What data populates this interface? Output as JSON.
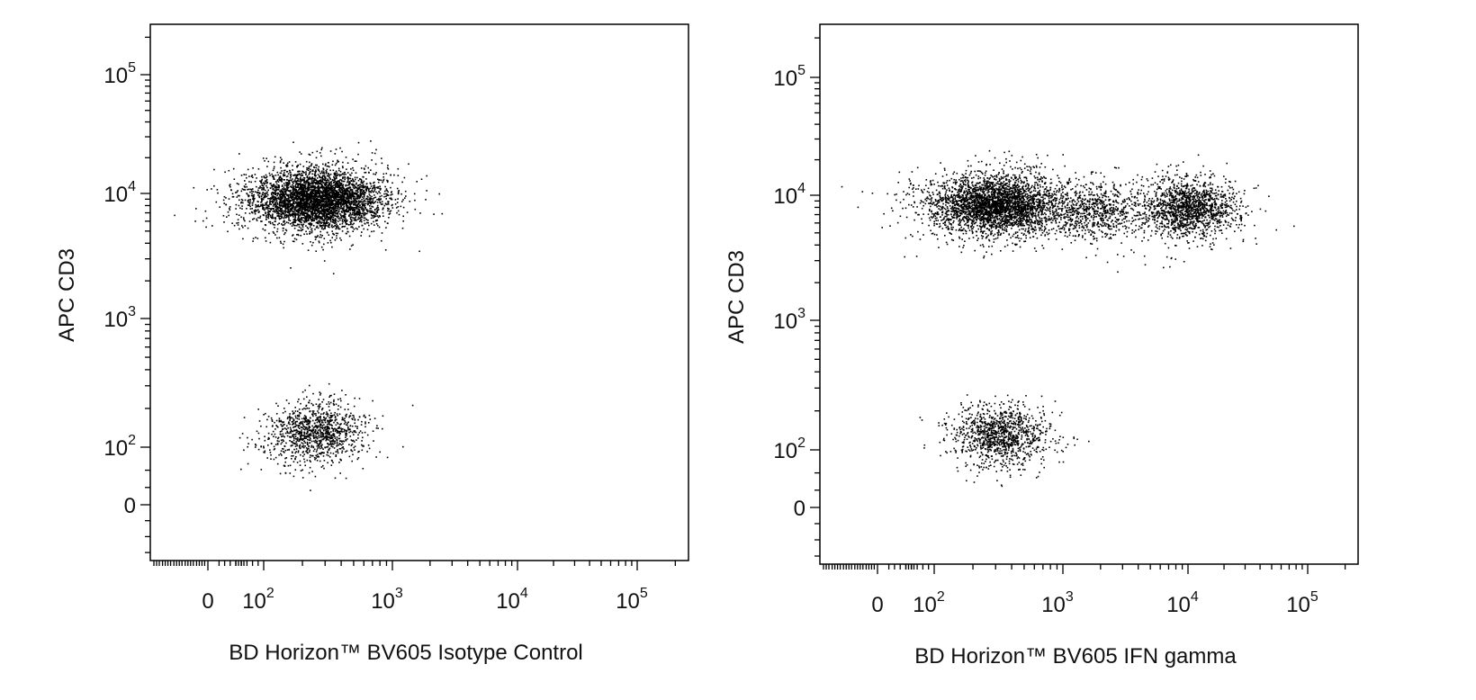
{
  "chart_data": [
    {
      "type": "scatter",
      "xlabel": "BD Horizon™ BV605 Isotype Control",
      "ylabel": "APC CD3",
      "x_scale": "biexponential",
      "y_scale": "biexponential",
      "xlim": [
        -250,
        250000
      ],
      "ylim": [
        -100,
        250000
      ],
      "x_ticks": [
        {
          "label": "0",
          "value": 0
        },
        {
          "label": "10",
          "exp": "2",
          "value": 100
        },
        {
          "label": "10",
          "exp": "3",
          "value": 1000
        },
        {
          "label": "10",
          "exp": "4",
          "value": 10000
        },
        {
          "label": "10",
          "exp": "5",
          "value": 100000
        }
      ],
      "y_ticks": [
        {
          "label": "0",
          "value": 0
        },
        {
          "label": "10",
          "exp": "2",
          "value": 100
        },
        {
          "label": "10",
          "exp": "3",
          "value": 1000
        },
        {
          "label": "10",
          "exp": "4",
          "value": 10000
        },
        {
          "label": "10",
          "exp": "5",
          "value": 100000
        }
      ],
      "populations": [
        {
          "center": [
            260,
            9000
          ],
          "count": 4200
        },
        {
          "center": [
            250,
            130
          ],
          "count": 1100
        }
      ],
      "color": "#000000"
    },
    {
      "type": "scatter",
      "xlabel": "BD Horizon™ BV605 IFN gamma",
      "ylabel": "APC CD3",
      "x_scale": "biexponential",
      "y_scale": "biexponential",
      "xlim": [
        -250,
        250000
      ],
      "ylim": [
        -100,
        250000
      ],
      "x_ticks": [
        {
          "label": "0",
          "value": 0
        },
        {
          "label": "10",
          "exp": "2",
          "value": 100
        },
        {
          "label": "10",
          "exp": "3",
          "value": 1000
        },
        {
          "label": "10",
          "exp": "4",
          "value": 10000
        },
        {
          "label": "10",
          "exp": "5",
          "value": 100000
        }
      ],
      "y_ticks": [
        {
          "label": "0",
          "value": 0
        },
        {
          "label": "10",
          "exp": "2",
          "value": 100
        },
        {
          "label": "10",
          "exp": "3",
          "value": 1000
        },
        {
          "label": "10",
          "exp": "4",
          "value": 10000
        },
        {
          "label": "10",
          "exp": "5",
          "value": 100000
        }
      ],
      "populations": [
        {
          "center": [
            300,
            8500
          ],
          "count": 3300
        },
        {
          "center": [
            10000,
            8000
          ],
          "count": 1500
        },
        {
          "center": [
            1800,
            7500
          ],
          "count": 700
        },
        {
          "center": [
            320,
            130
          ],
          "count": 1100
        }
      ],
      "color": "#000000"
    }
  ]
}
